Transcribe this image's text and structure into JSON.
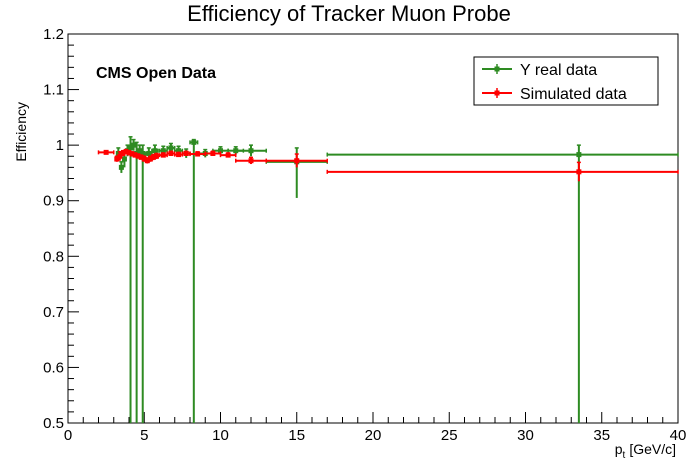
{
  "chart_data": {
    "type": "scatter",
    "title": "Efficiency of Tracker Muon Probe",
    "xlabel": "p",
    "xlabel_sub": "t",
    "xlabel_unit": "[GeV/c]",
    "ylabel": "Efficiency",
    "annotation": "CMS Open Data",
    "xlim": [
      0,
      40
    ],
    "ylim": [
      0.5,
      1.2
    ],
    "x_ticks": [
      0,
      5,
      10,
      15,
      20,
      25,
      30,
      35,
      40
    ],
    "x_tick_labels": [
      "0",
      "5",
      "10",
      "15",
      "20",
      "25",
      "30",
      "35",
      "40"
    ],
    "y_ticks": [
      0.5,
      0.6,
      0.7,
      0.8,
      0.9,
      1.0,
      1.1,
      1.2
    ],
    "y_tick_labels": [
      "0.5",
      "0.6",
      "0.7",
      "0.8",
      "0.9",
      "1",
      "1.1",
      "1.2"
    ],
    "grid": false,
    "legend_position": "top-right",
    "series": [
      {
        "name": "Υ real data",
        "color": "#2e8b22",
        "points": [
          {
            "x": 3.3,
            "y": 0.985,
            "xerr": 0.1,
            "ylo": 0.975,
            "yhi": 0.995
          },
          {
            "x": 3.5,
            "y": 0.96,
            "xerr": 0.1,
            "ylo": 0.95,
            "yhi": 0.97
          },
          {
            "x": 3.7,
            "y": 0.975,
            "xerr": 0.1,
            "ylo": 0.96,
            "yhi": 0.99
          },
          {
            "x": 3.9,
            "y": 0.99,
            "xerr": 0.1,
            "ylo": 0.98,
            "yhi": 1.0
          },
          {
            "x": 4.1,
            "y": 0.995,
            "xerr": 0.1,
            "ylo": 0.5,
            "yhi": 1.015
          },
          {
            "x": 4.3,
            "y": 1.0,
            "xerr": 0.1,
            "ylo": 0.99,
            "yhi": 1.01
          },
          {
            "x": 4.5,
            "y": 0.985,
            "xerr": 0.1,
            "ylo": 0.5,
            "yhi": 1.005
          },
          {
            "x": 4.7,
            "y": 0.99,
            "xerr": 0.1,
            "ylo": 0.98,
            "yhi": 1.0
          },
          {
            "x": 4.9,
            "y": 0.985,
            "xerr": 0.1,
            "ylo": 0.5,
            "yhi": 1.0
          },
          {
            "x": 5.3,
            "y": 0.985,
            "xerr": 0.2,
            "ylo": 0.975,
            "yhi": 0.995
          },
          {
            "x": 5.7,
            "y": 0.99,
            "xerr": 0.2,
            "ylo": 0.98,
            "yhi": 1.0
          },
          {
            "x": 6.25,
            "y": 0.99,
            "xerr": 0.25,
            "ylo": 0.982,
            "yhi": 0.998
          },
          {
            "x": 6.75,
            "y": 0.995,
            "xerr": 0.25,
            "ylo": 0.987,
            "yhi": 1.003
          },
          {
            "x": 7.25,
            "y": 0.99,
            "xerr": 0.25,
            "ylo": 0.982,
            "yhi": 0.998
          },
          {
            "x": 7.75,
            "y": 0.985,
            "xerr": 0.25,
            "ylo": 0.977,
            "yhi": 0.993
          },
          {
            "x": 8.25,
            "y": 1.005,
            "xerr": 0.25,
            "ylo": 0.5,
            "yhi": 1.01
          },
          {
            "x": 9.0,
            "y": 0.985,
            "xerr": 0.5,
            "ylo": 0.978,
            "yhi": 0.992
          },
          {
            "x": 10.0,
            "y": 0.99,
            "xerr": 0.5,
            "ylo": 0.983,
            "yhi": 0.997
          },
          {
            "x": 11.0,
            "y": 0.99,
            "xerr": 0.5,
            "ylo": 0.983,
            "yhi": 0.997
          },
          {
            "x": 12.0,
            "y": 0.99,
            "xerr": 1.0,
            "ylo": 0.98,
            "yhi": 1.0
          },
          {
            "x": 15.0,
            "y": 0.97,
            "xerr": 2.0,
            "ylo": 0.905,
            "yhi": 0.995
          },
          {
            "x": 33.5,
            "y": 0.983,
            "xerr": 16.5,
            "ylo": 0.5,
            "yhi": 1.0
          }
        ]
      },
      {
        "name": "Simulated data",
        "color": "#ff0000",
        "points": [
          {
            "x": 2.5,
            "y": 0.987,
            "xerr": 0.5,
            "ylo": 0.985,
            "yhi": 0.989
          },
          {
            "x": 3.2,
            "y": 0.975,
            "xerr": 0.1,
            "ylo": 0.97,
            "yhi": 0.98
          },
          {
            "x": 3.4,
            "y": 0.98,
            "xerr": 0.1,
            "ylo": 0.972,
            "yhi": 0.988
          },
          {
            "x": 3.6,
            "y": 0.985,
            "xerr": 0.1,
            "ylo": 0.98,
            "yhi": 0.99
          },
          {
            "x": 3.8,
            "y": 0.988,
            "xerr": 0.1,
            "ylo": 0.984,
            "yhi": 0.992
          },
          {
            "x": 4.0,
            "y": 0.986,
            "xerr": 0.1,
            "ylo": 0.982,
            "yhi": 0.99
          },
          {
            "x": 4.2,
            "y": 0.984,
            "xerr": 0.1,
            "ylo": 0.98,
            "yhi": 0.988
          },
          {
            "x": 4.4,
            "y": 0.982,
            "xerr": 0.1,
            "ylo": 0.978,
            "yhi": 0.986
          },
          {
            "x": 4.6,
            "y": 0.98,
            "xerr": 0.1,
            "ylo": 0.976,
            "yhi": 0.984
          },
          {
            "x": 4.8,
            "y": 0.978,
            "xerr": 0.1,
            "ylo": 0.974,
            "yhi": 0.982
          },
          {
            "x": 5.0,
            "y": 0.975,
            "xerr": 0.1,
            "ylo": 0.97,
            "yhi": 0.98
          },
          {
            "x": 5.2,
            "y": 0.972,
            "xerr": 0.1,
            "ylo": 0.967,
            "yhi": 0.977
          },
          {
            "x": 5.4,
            "y": 0.975,
            "xerr": 0.1,
            "ylo": 0.97,
            "yhi": 0.98
          },
          {
            "x": 5.6,
            "y": 0.978,
            "xerr": 0.1,
            "ylo": 0.973,
            "yhi": 0.983
          },
          {
            "x": 5.8,
            "y": 0.98,
            "xerr": 0.1,
            "ylo": 0.975,
            "yhi": 0.985
          },
          {
            "x": 6.25,
            "y": 0.982,
            "xerr": 0.25,
            "ylo": 0.978,
            "yhi": 0.986
          },
          {
            "x": 6.75,
            "y": 0.985,
            "xerr": 0.25,
            "ylo": 0.981,
            "yhi": 0.989
          },
          {
            "x": 7.25,
            "y": 0.983,
            "xerr": 0.25,
            "ylo": 0.979,
            "yhi": 0.987
          },
          {
            "x": 7.75,
            "y": 0.985,
            "xerr": 0.25,
            "ylo": 0.981,
            "yhi": 0.989
          },
          {
            "x": 8.5,
            "y": 0.984,
            "xerr": 0.5,
            "ylo": 0.98,
            "yhi": 0.988
          },
          {
            "x": 9.5,
            "y": 0.985,
            "xerr": 0.5,
            "ylo": 0.981,
            "yhi": 0.989
          },
          {
            "x": 10.5,
            "y": 0.982,
            "xerr": 0.5,
            "ylo": 0.978,
            "yhi": 0.986
          },
          {
            "x": 12.0,
            "y": 0.972,
            "xerr": 1.0,
            "ylo": 0.966,
            "yhi": 0.978
          },
          {
            "x": 15.0,
            "y": 0.972,
            "xerr": 2.0,
            "ylo": 0.96,
            "yhi": 0.984
          },
          {
            "x": 33.5,
            "y": 0.952,
            "xerr": 16.5,
            "ylo": 0.935,
            "yhi": 0.969
          }
        ]
      }
    ]
  }
}
